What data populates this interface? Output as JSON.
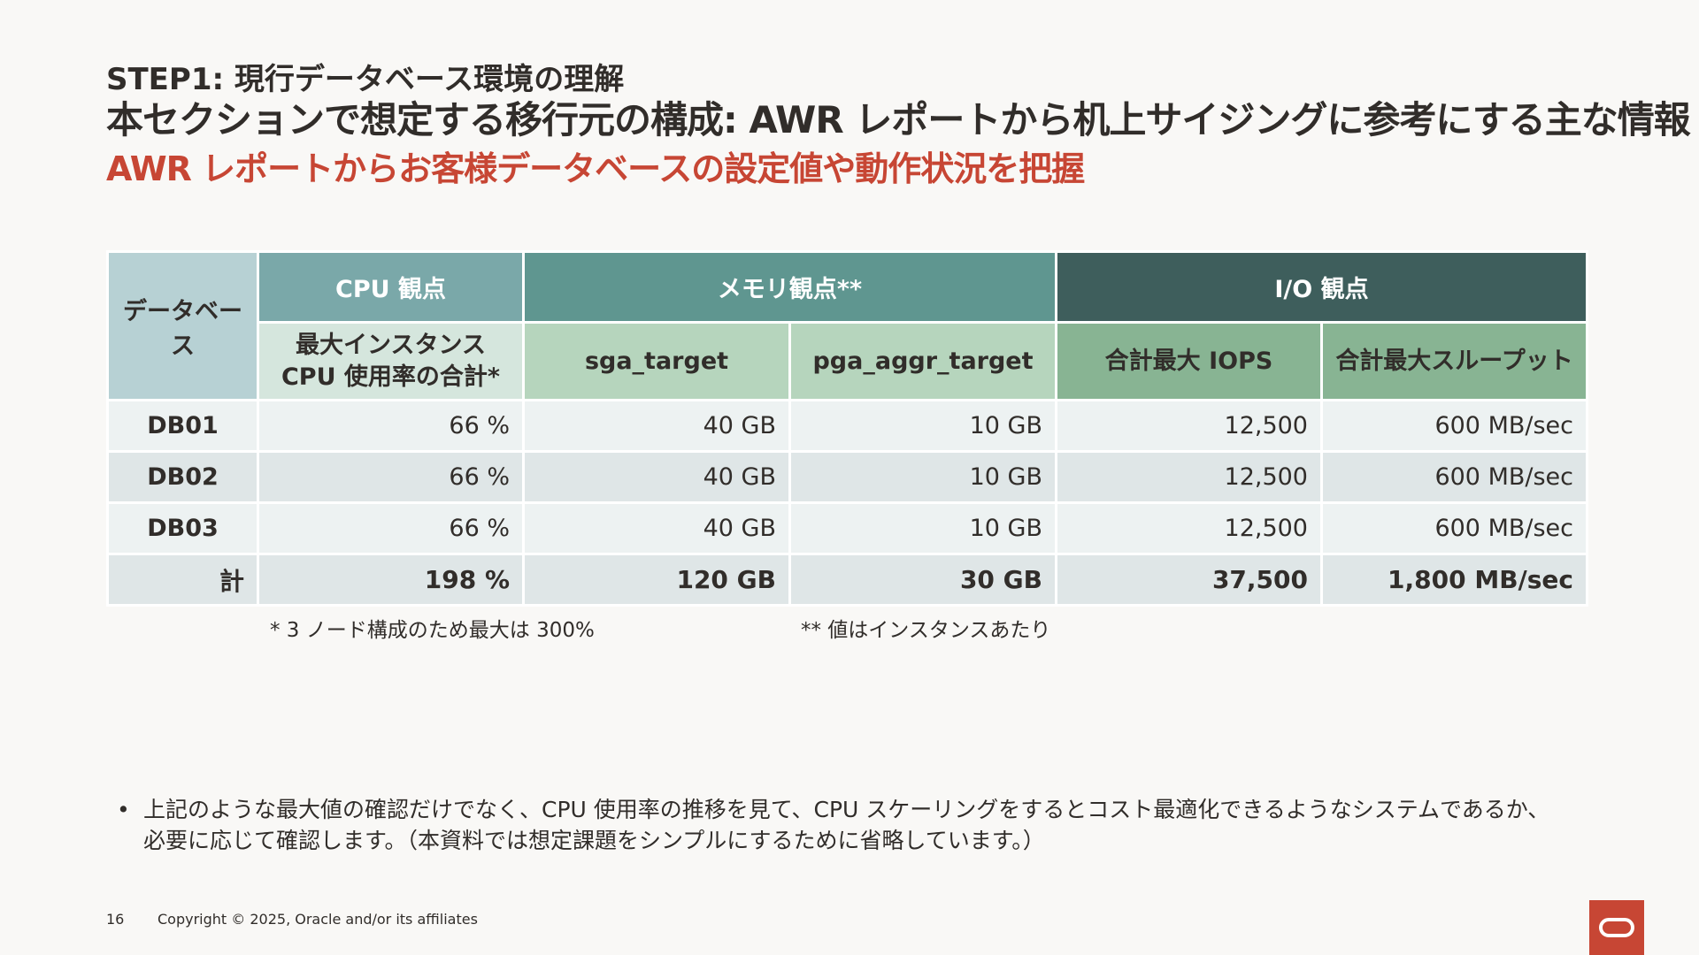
{
  "header": {
    "step": "STEP1: 現行データベース環境の理解",
    "title": "本セクションで想定する移行元の構成: AWR レポートから机上サイジングに参考にする主な情報",
    "subtitle": "AWR レポートからお客様データベースの設定値や動作状況を把握"
  },
  "table": {
    "col_database": "データベース",
    "group_cpu": "CPU 観点",
    "group_memory": "メモリ観点**",
    "group_io": "I/O 観点",
    "sub_cpu_line1": "最大インスタンス",
    "sub_cpu_line2": "CPU 使用率の合計*",
    "sub_sga": "sga_target",
    "sub_pga": "pga_aggr_target",
    "sub_iops": "合計最大 IOPS",
    "sub_throughput": "合計最大スループット",
    "rows": [
      {
        "name": "DB01",
        "cpu": "66 %",
        "sga": "40 GB",
        "pga": "10 GB",
        "iops": "12,500",
        "throughput": "600 MB/sec"
      },
      {
        "name": "DB02",
        "cpu": "66 %",
        "sga": "40 GB",
        "pga": "10 GB",
        "iops": "12,500",
        "throughput": "600 MB/sec"
      },
      {
        "name": "DB03",
        "cpu": "66 %",
        "sga": "40 GB",
        "pga": "10 GB",
        "iops": "12,500",
        "throughput": "600 MB/sec"
      }
    ],
    "total": {
      "name": "計",
      "cpu": "198 %",
      "sga": "120 GB",
      "pga": "30 GB",
      "iops": "37,500",
      "throughput": "1,800 MB/sec"
    }
  },
  "notes": {
    "note1": "* 3 ノード構成のため最大は 300%",
    "note2": "** 値はインスタンスあたり"
  },
  "bullet": {
    "dot": "•",
    "line1": "上記のような最大値の確認だけでなく、CPU 使用率の推移を見て、CPU スケーリングをするとコスト最適化できるようなシステムであるか、",
    "line2": "必要に応じて確認します。（本資料では想定課題をシンプルにするために省略しています。）"
  },
  "footer": {
    "page_number": "16",
    "copyright": "Copyright © 2025, Oracle and/or its affiliates"
  },
  "colors": {
    "accent": "#c74634",
    "cpu_header": "#7aa8a9",
    "memory_header": "#5f9690",
    "io_header": "#3e5e5c"
  }
}
